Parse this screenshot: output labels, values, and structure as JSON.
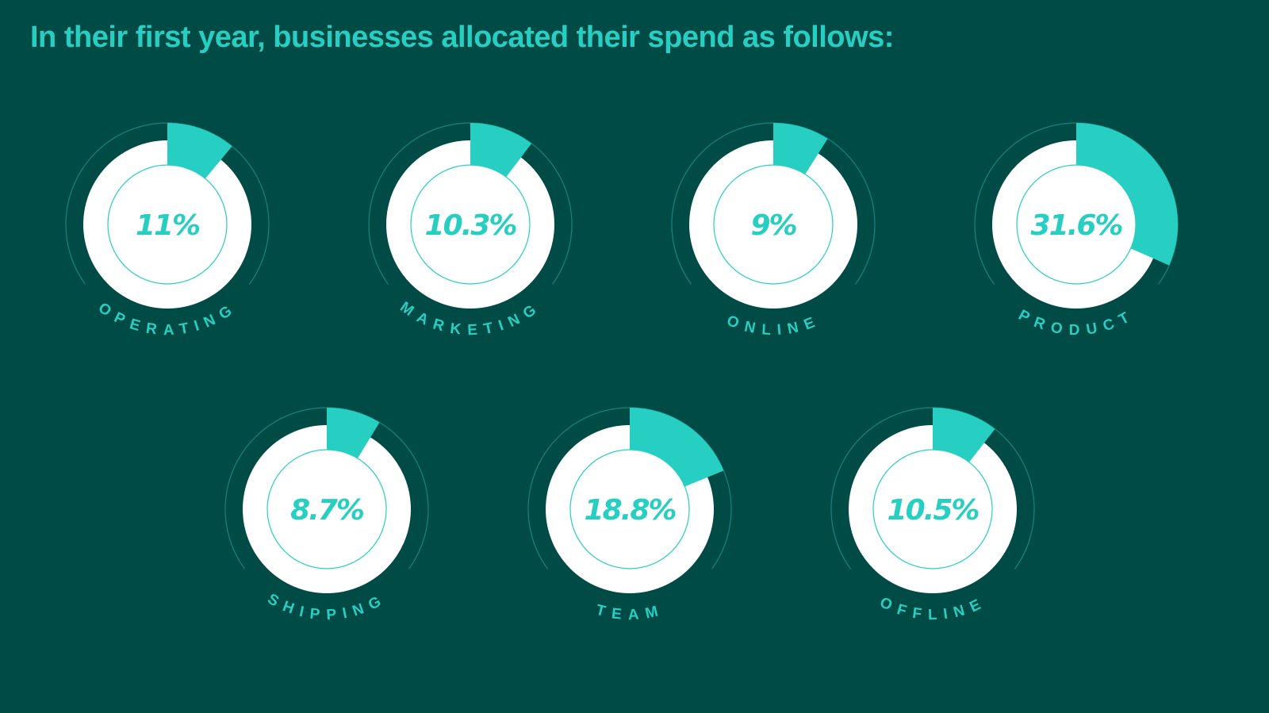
{
  "chart_data": {
    "type": "pie",
    "title": "In their first year, businesses allocated their spend as follows:",
    "colors": {
      "background": "#014b46",
      "accent": "#27cfc2",
      "ring": "#ffffff"
    },
    "items": [
      {
        "label": "OPERATING",
        "value": 11,
        "display": "11%"
      },
      {
        "label": "MARKETING",
        "value": 10.3,
        "display": "10.3%"
      },
      {
        "label": "ONLINE",
        "value": 9,
        "display": "9%"
      },
      {
        "label": "PRODUCT",
        "value": 31.6,
        "display": "31.6%"
      },
      {
        "label": "SHIPPING",
        "value": 8.7,
        "display": "8.7%"
      },
      {
        "label": "TEAM",
        "value": 18.8,
        "display": "18.8%"
      },
      {
        "label": "OFFLINE",
        "value": 10.5,
        "display": "10.5%"
      }
    ]
  }
}
